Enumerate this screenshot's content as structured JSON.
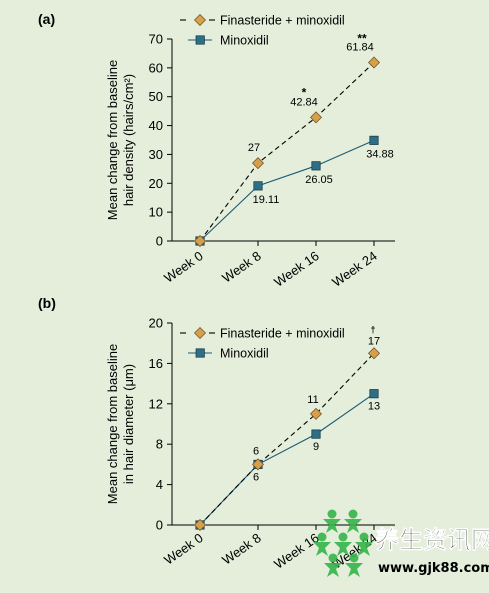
{
  "colors": {
    "background": "#e4eedb",
    "finasteride_marker": "#d4a04c",
    "minoxidil_marker": "#2e6f86",
    "minoxidil_line": "#1b5a73",
    "axis": "#000000"
  },
  "chart_data": [
    {
      "panel": "(a)",
      "type": "line",
      "ylabel_line1": "Mean change from baseline",
      "ylabel_line2": "hair density (hairs/cm²)",
      "ylim": [
        0,
        70
      ],
      "yticks": [
        0,
        10,
        20,
        30,
        40,
        50,
        60,
        70
      ],
      "categories": [
        "Week 0",
        "Week 8",
        "Week 16",
        "Week 24"
      ],
      "legend_position": "top",
      "series": [
        {
          "name": "Finasteride + minoxidil",
          "line_style": "dashed",
          "marker": "diamond",
          "values": [
            0,
            27,
            42.84,
            61.84
          ],
          "labels": [
            "",
            "27",
            "42.84",
            "61.84"
          ],
          "annotations": [
            "",
            "",
            "*",
            "**"
          ]
        },
        {
          "name": "Minoxidil",
          "line_style": "solid",
          "marker": "square",
          "values": [
            0,
            19.11,
            26.05,
            34.88
          ],
          "labels": [
            "",
            "19.11",
            "26.05",
            "34.88"
          ],
          "annotations": [
            "",
            "",
            "",
            ""
          ]
        }
      ]
    },
    {
      "panel": "(b)",
      "type": "line",
      "ylabel_line1": "Mean change from baseline",
      "ylabel_line2": "in hair diameter (μm)",
      "ylim": [
        0,
        20
      ],
      "yticks": [
        0,
        4,
        8,
        12,
        16,
        20
      ],
      "categories": [
        "Week 0",
        "Week 8",
        "Week 16",
        "Week 24"
      ],
      "legend_position": "top",
      "series": [
        {
          "name": "Finasteride + minoxidil",
          "line_style": "dashed",
          "marker": "diamond",
          "values": [
            0,
            6,
            11,
            17
          ],
          "labels": [
            "",
            "6",
            "11",
            "17"
          ],
          "annotations": [
            "",
            "",
            "",
            "†"
          ]
        },
        {
          "name": "Minoxidil",
          "line_style": "solid",
          "marker": "square",
          "values": [
            0,
            6,
            9,
            13
          ],
          "labels": [
            "",
            "6",
            "9",
            "13"
          ],
          "annotations": [
            "",
            "",
            "",
            ""
          ]
        }
      ]
    }
  ],
  "watermark": {
    "text": "养生资讯网",
    "url": "www.gjk88.com"
  }
}
